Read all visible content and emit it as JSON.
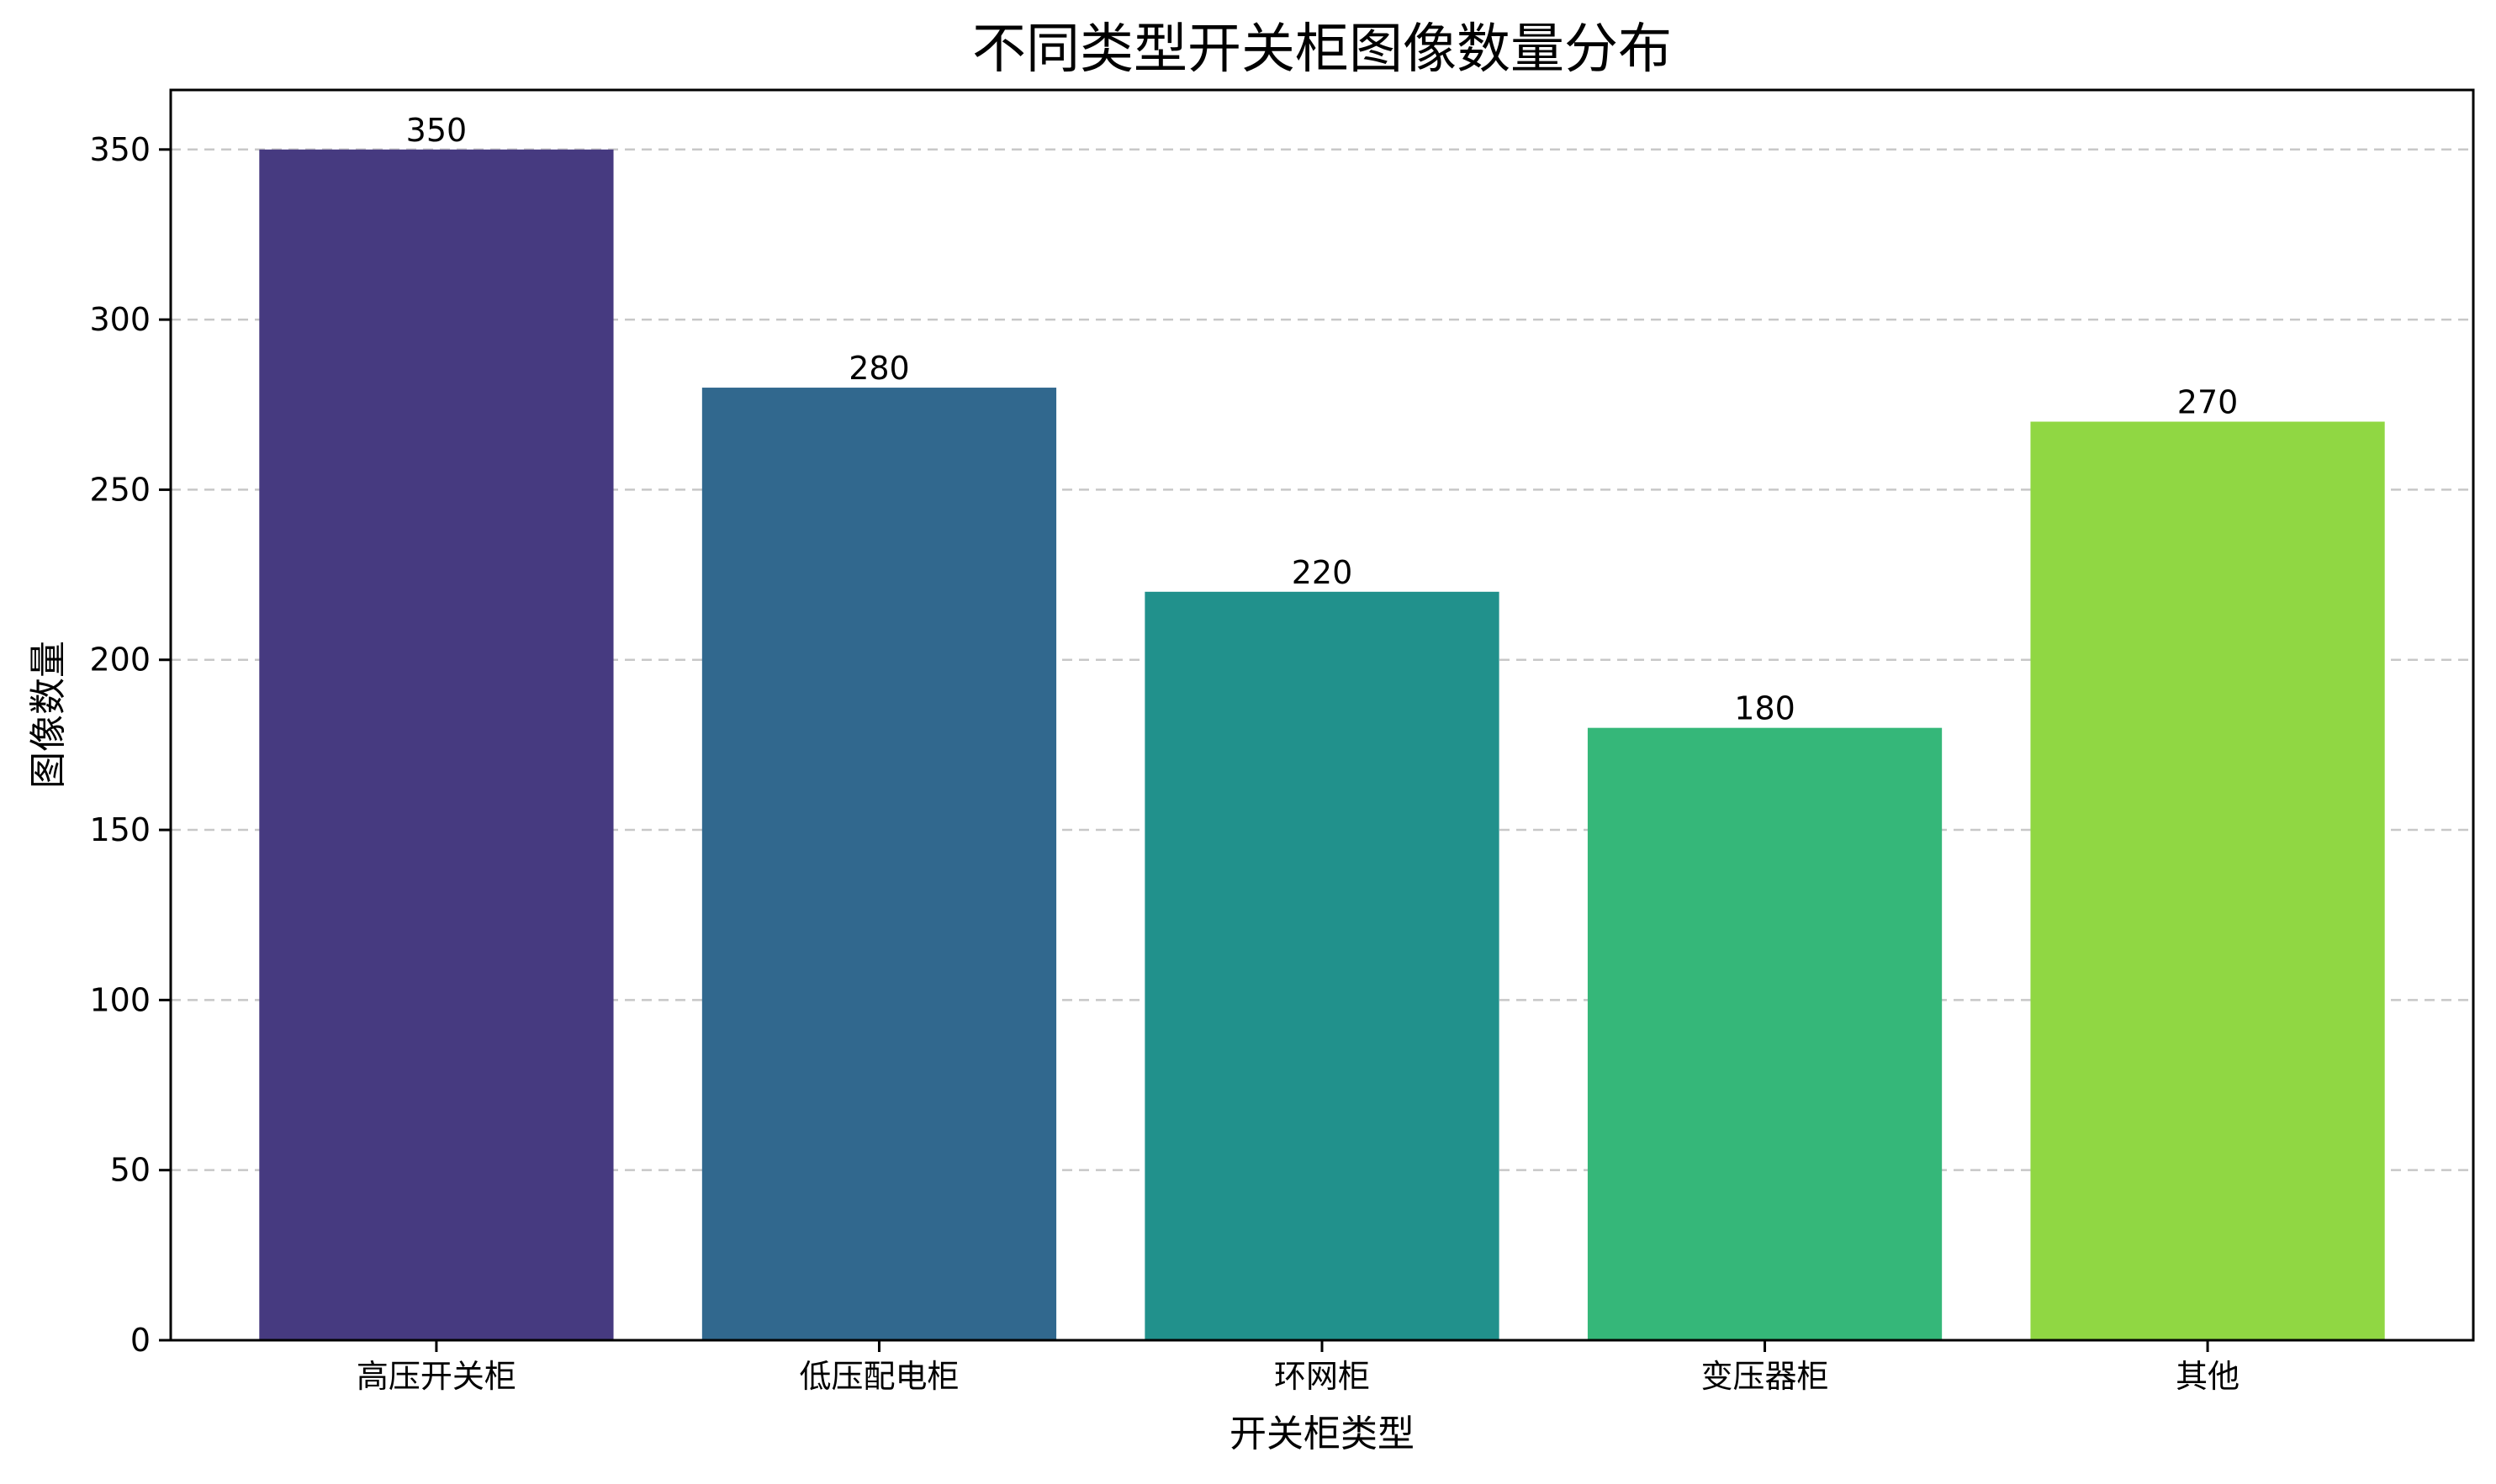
{
  "chart_data": {
    "type": "bar",
    "title": "不同类型开关柜图像数量分布",
    "xlabel": "开关柜类型",
    "ylabel": "图像数量",
    "categories": [
      "高压开关柜",
      "低压配电柜",
      "环网柜",
      "变压器柜",
      "其他"
    ],
    "values": [
      350,
      280,
      220,
      180,
      270
    ],
    "colors": [
      "#463a80",
      "#31688e",
      "#21918c",
      "#35b779",
      "#90d743"
    ],
    "ylim": [
      0,
      367.5
    ],
    "yticks": [
      0,
      50,
      100,
      150,
      200,
      250,
      300,
      350
    ],
    "grid": "y-dashed",
    "data_labels": [
      "350",
      "280",
      "220",
      "180",
      "270"
    ]
  }
}
